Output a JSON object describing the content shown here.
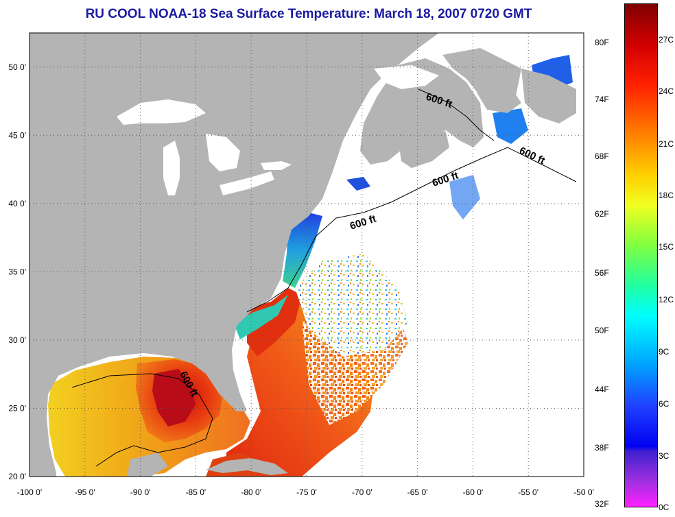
{
  "title": "RU COOL  NOAA-18  Sea Surface Temperature:  March 18, 2007 0720 GMT",
  "map": {
    "lon_ticks": [
      "-100 0'",
      "-95 0'",
      "-90 0'",
      "-85 0'",
      "-80 0'",
      "-75 0'",
      "-70 0'",
      "-65 0'",
      "-60 0'",
      "-55 0'",
      "-50 0'"
    ],
    "lat_ticks": [
      "50 0'",
      "45 0'",
      "40 0'",
      "35 0'",
      "30 0'",
      "25 0'",
      "20 0'"
    ],
    "isobath_labels": [
      "600 ft",
      "600 ft",
      "600 ft",
      "600 ft",
      "600 ft"
    ],
    "land_color": "#b4b4b4",
    "no_data_color": "#ffffff",
    "grid": "dotted"
  },
  "colorbar": {
    "fahrenheit_labels": [
      "80F",
      "74F",
      "68F",
      "62F",
      "56F",
      "50F",
      "44F",
      "38F",
      "32F"
    ],
    "celsius_labels": [
      "27C",
      "24C",
      "21C",
      "18C",
      "15C",
      "12C",
      "9C",
      "6C",
      "3C",
      "0C"
    ]
  }
}
